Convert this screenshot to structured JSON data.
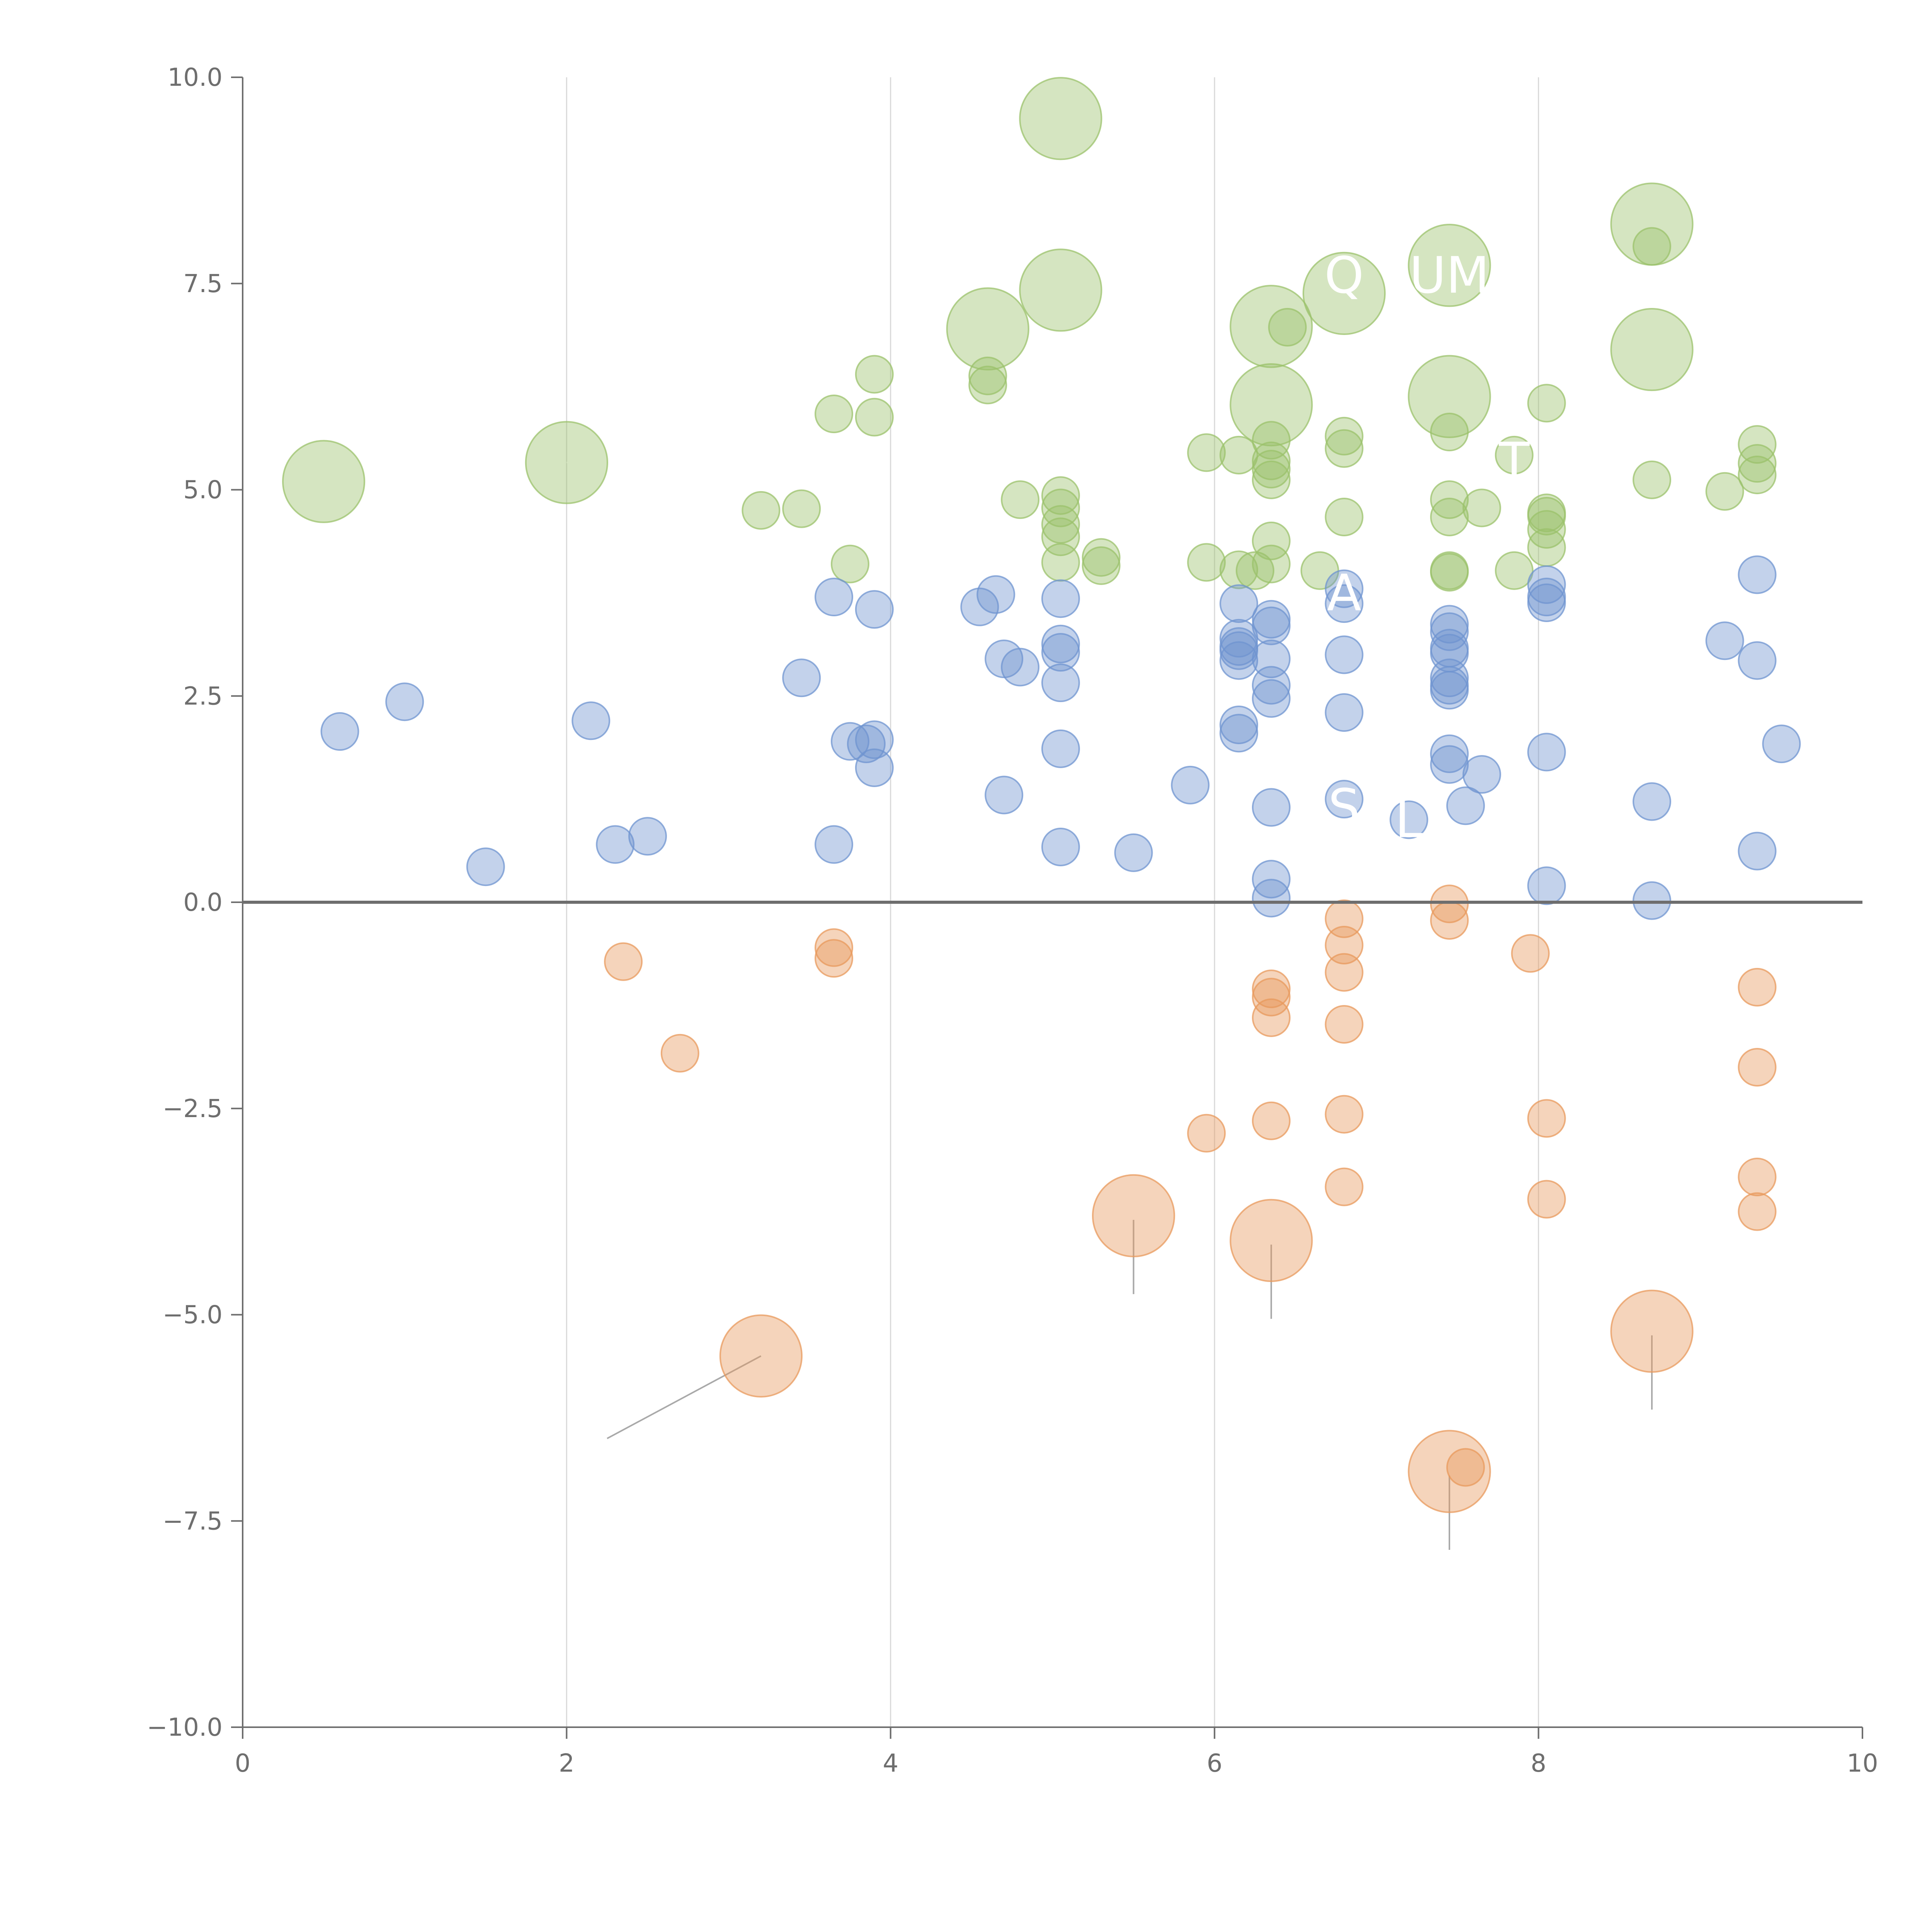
{
  "chart_data": {
    "type": "scatter",
    "title": "",
    "xlabel": "",
    "ylabel": "",
    "xlim": [
      0,
      10
    ],
    "ylim": [
      -10,
      10
    ],
    "x_ticks": [
      0,
      2,
      4,
      6,
      8,
      10
    ],
    "x_tick_labels": [
      "0",
      "2",
      "4",
      "6",
      "8",
      "10"
    ],
    "y_ticks": [
      -10,
      -7.5,
      -5,
      -2.5,
      0,
      2.5,
      5,
      7.5,
      10
    ],
    "y_tick_labels": [
      "−10.0",
      "−7.5",
      "−5.0",
      "−2.5",
      "0.0",
      "2.5",
      "5.0",
      "7.5",
      "10.0"
    ],
    "grid": "vertical",
    "zero_line": true,
    "legend": "none",
    "colors": {
      "green": "#9bc26b",
      "blue": "#6f94d0",
      "orange": "#e8995c",
      "grid": "#d9d9d9",
      "axis": "#6e6e6e"
    },
    "series": [
      {
        "name": "green",
        "color": "#9bc26b",
        "points": [
          {
            "x": 0.5,
            "y": 5.1,
            "r": 2.2
          },
          {
            "x": 2.0,
            "y": 5.33,
            "r": 2.2
          },
          {
            "x": 5.05,
            "y": 9.5,
            "r": 2.2
          },
          {
            "x": 5.05,
            "y": 7.42,
            "r": 2.2
          },
          {
            "x": 4.6,
            "y": 6.95,
            "r": 2.2
          },
          {
            "x": 6.35,
            "y": 6.98,
            "r": 2.2
          },
          {
            "x": 6.35,
            "y": 6.03,
            "r": 2.2
          },
          {
            "x": 6.8,
            "y": 7.38,
            "r": 2.2
          },
          {
            "x": 7.45,
            "y": 7.72,
            "r": 2.2
          },
          {
            "x": 7.45,
            "y": 6.13,
            "r": 2.2
          },
          {
            "x": 8.7,
            "y": 8.22,
            "r": 2.2
          },
          {
            "x": 8.7,
            "y": 6.7,
            "r": 2.2
          },
          {
            "x": 3.2,
            "y": 4.75,
            "r": 1
          },
          {
            "x": 3.45,
            "y": 4.77,
            "r": 1
          },
          {
            "x": 3.65,
            "y": 5.92,
            "r": 1
          },
          {
            "x": 3.9,
            "y": 6.4,
            "r": 1
          },
          {
            "x": 3.9,
            "y": 5.88,
            "r": 1
          },
          {
            "x": 3.75,
            "y": 4.1,
            "r": 1
          },
          {
            "x": 4.6,
            "y": 6.38,
            "r": 1
          },
          {
            "x": 4.6,
            "y": 6.27,
            "r": 1
          },
          {
            "x": 4.8,
            "y": 4.88,
            "r": 1
          },
          {
            "x": 5.05,
            "y": 4.93,
            "r": 1
          },
          {
            "x": 5.05,
            "y": 4.78,
            "r": 1
          },
          {
            "x": 5.05,
            "y": 4.58,
            "r": 1
          },
          {
            "x": 5.05,
            "y": 4.43,
            "r": 1
          },
          {
            "x": 5.05,
            "y": 4.12,
            "r": 1
          },
          {
            "x": 5.3,
            "y": 4.18,
            "r": 1
          },
          {
            "x": 5.3,
            "y": 4.08,
            "r": 1
          },
          {
            "x": 5.95,
            "y": 5.45,
            "r": 1
          },
          {
            "x": 5.95,
            "y": 4.12,
            "r": 1
          },
          {
            "x": 6.15,
            "y": 5.42,
            "r": 1
          },
          {
            "x": 6.15,
            "y": 4.03,
            "r": 1
          },
          {
            "x": 6.25,
            "y": 4.02,
            "r": 1
          },
          {
            "x": 6.35,
            "y": 5.6,
            "r": 1
          },
          {
            "x": 6.35,
            "y": 5.35,
            "r": 1
          },
          {
            "x": 6.35,
            "y": 5.25,
            "r": 1
          },
          {
            "x": 6.35,
            "y": 5.12,
            "r": 1
          },
          {
            "x": 6.35,
            "y": 4.38,
            "r": 1
          },
          {
            "x": 6.35,
            "y": 4.1,
            "r": 1
          },
          {
            "x": 6.45,
            "y": 6.97,
            "r": 1
          },
          {
            "x": 6.65,
            "y": 4.02,
            "r": 1
          },
          {
            "x": 6.8,
            "y": 5.65,
            "r": 1
          },
          {
            "x": 6.8,
            "y": 5.5,
            "r": 1
          },
          {
            "x": 6.8,
            "y": 4.67,
            "r": 1
          },
          {
            "x": 7.45,
            "y": 5.7,
            "r": 1
          },
          {
            "x": 7.45,
            "y": 4.88,
            "r": 1
          },
          {
            "x": 7.45,
            "y": 4.67,
            "r": 1
          },
          {
            "x": 7.45,
            "y": 4.02,
            "r": 1
          },
          {
            "x": 7.45,
            "y": 4.0,
            "r": 1
          },
          {
            "x": 7.65,
            "y": 4.78,
            "r": 1
          },
          {
            "x": 7.85,
            "y": 5.42,
            "r": 1
          },
          {
            "x": 7.85,
            "y": 4.02,
            "r": 1
          },
          {
            "x": 8.05,
            "y": 6.05,
            "r": 1
          },
          {
            "x": 8.05,
            "y": 4.72,
            "r": 1
          },
          {
            "x": 8.05,
            "y": 4.68,
            "r": 1
          },
          {
            "x": 8.05,
            "y": 4.52,
            "r": 1
          },
          {
            "x": 8.05,
            "y": 4.3,
            "r": 1
          },
          {
            "x": 8.7,
            "y": 7.95,
            "r": 1
          },
          {
            "x": 8.7,
            "y": 5.12,
            "r": 1
          },
          {
            "x": 9.15,
            "y": 4.98,
            "r": 1
          },
          {
            "x": 9.35,
            "y": 5.55,
            "r": 1
          },
          {
            "x": 9.35,
            "y": 5.32,
            "r": 1
          },
          {
            "x": 9.35,
            "y": 5.18,
            "r": 1
          }
        ]
      },
      {
        "name": "blue",
        "color": "#6f94d0",
        "points": [
          {
            "x": 0.6,
            "y": 2.07
          },
          {
            "x": 1.0,
            "y": 2.43
          },
          {
            "x": 1.5,
            "y": 0.43
          },
          {
            "x": 2.15,
            "y": 2.2
          },
          {
            "x": 2.3,
            "y": 0.7
          },
          {
            "x": 2.5,
            "y": 0.8
          },
          {
            "x": 3.45,
            "y": 2.72
          },
          {
            "x": 3.65,
            "y": 3.7
          },
          {
            "x": 3.65,
            "y": 0.7
          },
          {
            "x": 3.75,
            "y": 1.95
          },
          {
            "x": 3.85,
            "y": 1.92
          },
          {
            "x": 3.9,
            "y": 3.55
          },
          {
            "x": 3.9,
            "y": 1.97
          },
          {
            "x": 3.9,
            "y": 1.63
          },
          {
            "x": 4.55,
            "y": 3.58
          },
          {
            "x": 4.65,
            "y": 3.73
          },
          {
            "x": 4.7,
            "y": 2.95
          },
          {
            "x": 4.7,
            "y": 1.3
          },
          {
            "x": 4.8,
            "y": 2.85
          },
          {
            "x": 5.05,
            "y": 3.68
          },
          {
            "x": 5.05,
            "y": 3.13
          },
          {
            "x": 5.05,
            "y": 3.03
          },
          {
            "x": 5.05,
            "y": 2.66
          },
          {
            "x": 5.05,
            "y": 1.86
          },
          {
            "x": 5.05,
            "y": 0.67
          },
          {
            "x": 5.5,
            "y": 0.6
          },
          {
            "x": 5.85,
            "y": 1.42
          },
          {
            "x": 6.15,
            "y": 3.62
          },
          {
            "x": 6.15,
            "y": 3.2
          },
          {
            "x": 6.15,
            "y": 3.1
          },
          {
            "x": 6.15,
            "y": 3.05
          },
          {
            "x": 6.15,
            "y": 2.93
          },
          {
            "x": 6.15,
            "y": 2.15
          },
          {
            "x": 6.15,
            "y": 2.05
          },
          {
            "x": 6.35,
            "y": 3.43
          },
          {
            "x": 6.35,
            "y": 3.35
          },
          {
            "x": 6.35,
            "y": 2.95
          },
          {
            "x": 6.35,
            "y": 2.63
          },
          {
            "x": 6.35,
            "y": 2.47
          },
          {
            "x": 6.35,
            "y": 1.15
          },
          {
            "x": 6.35,
            "y": 0.28
          },
          {
            "x": 6.35,
            "y": 0.05
          },
          {
            "x": 6.8,
            "y": 3.8
          },
          {
            "x": 6.8,
            "y": 3.62
          },
          {
            "x": 6.8,
            "y": 3.0
          },
          {
            "x": 6.8,
            "y": 2.3
          },
          {
            "x": 6.8,
            "y": 1.25
          },
          {
            "x": 7.2,
            "y": 1.0
          },
          {
            "x": 7.45,
            "y": 3.37
          },
          {
            "x": 7.45,
            "y": 3.28
          },
          {
            "x": 7.45,
            "y": 3.08
          },
          {
            "x": 7.45,
            "y": 3.02
          },
          {
            "x": 7.45,
            "y": 2.72
          },
          {
            "x": 7.45,
            "y": 2.63
          },
          {
            "x": 7.45,
            "y": 2.57
          },
          {
            "x": 7.45,
            "y": 1.8
          },
          {
            "x": 7.45,
            "y": 1.67
          },
          {
            "x": 7.65,
            "y": 1.55
          },
          {
            "x": 7.55,
            "y": 1.17
          },
          {
            "x": 8.05,
            "y": 3.85
          },
          {
            "x": 8.05,
            "y": 3.7
          },
          {
            "x": 8.05,
            "y": 3.63
          },
          {
            "x": 8.05,
            "y": 1.82
          },
          {
            "x": 8.05,
            "y": 0.2
          },
          {
            "x": 8.7,
            "y": 1.22
          },
          {
            "x": 8.7,
            "y": 0.02
          },
          {
            "x": 9.15,
            "y": 3.17
          },
          {
            "x": 9.35,
            "y": 3.97
          },
          {
            "x": 9.35,
            "y": 2.93
          },
          {
            "x": 9.35,
            "y": 0.62
          },
          {
            "x": 9.5,
            "y": 1.92
          }
        ]
      },
      {
        "name": "orange",
        "color": "#e8995c",
        "points": [
          {
            "x": 3.2,
            "y": -5.5,
            "r": 2.2
          },
          {
            "x": 5.5,
            "y": -3.8,
            "r": 2.2
          },
          {
            "x": 6.35,
            "y": -4.1,
            "r": 2.2
          },
          {
            "x": 7.45,
            "y": -6.9,
            "r": 2.2
          },
          {
            "x": 8.7,
            "y": -5.2,
            "r": 2.2
          },
          {
            "x": 2.35,
            "y": -0.72,
            "r": 1
          },
          {
            "x": 2.7,
            "y": -1.83,
            "r": 1
          },
          {
            "x": 3.65,
            "y": -0.55,
            "r": 1
          },
          {
            "x": 3.65,
            "y": -0.68,
            "r": 1
          },
          {
            "x": 5.95,
            "y": -2.8,
            "r": 1
          },
          {
            "x": 6.35,
            "y": -1.05,
            "r": 1
          },
          {
            "x": 6.35,
            "y": -1.15,
            "r": 1
          },
          {
            "x": 6.35,
            "y": -1.4,
            "r": 1
          },
          {
            "x": 6.35,
            "y": -2.65,
            "r": 1
          },
          {
            "x": 6.8,
            "y": -0.2,
            "r": 1
          },
          {
            "x": 6.8,
            "y": -0.52,
            "r": 1
          },
          {
            "x": 6.8,
            "y": -0.85,
            "r": 1
          },
          {
            "x": 6.8,
            "y": -1.48,
            "r": 1
          },
          {
            "x": 6.8,
            "y": -2.57,
            "r": 1
          },
          {
            "x": 6.8,
            "y": -3.45,
            "r": 1
          },
          {
            "x": 7.45,
            "y": -0.02,
            "r": 1
          },
          {
            "x": 7.45,
            "y": -0.22,
            "r": 1
          },
          {
            "x": 7.55,
            "y": -6.85,
            "r": 1
          },
          {
            "x": 7.95,
            "y": -0.62,
            "r": 1
          },
          {
            "x": 8.05,
            "y": -2.62,
            "r": 1
          },
          {
            "x": 8.05,
            "y": -3.6,
            "r": 1
          },
          {
            "x": 9.35,
            "y": -1.03,
            "r": 1
          },
          {
            "x": 9.35,
            "y": -2.0,
            "r": 1
          },
          {
            "x": 9.35,
            "y": -3.33,
            "r": 1
          },
          {
            "x": 9.35,
            "y": -3.75,
            "r": 1
          }
        ]
      }
    ],
    "annotations": [
      {
        "text": "Q",
        "x": 6.8,
        "y": 7.6
      },
      {
        "text": "UM",
        "x": 7.45,
        "y": 7.6
      },
      {
        "text": "T",
        "x": 7.85,
        "y": 5.35
      },
      {
        "text": "A",
        "x": 6.8,
        "y": 3.75
      },
      {
        "text": "S",
        "x": 6.8,
        "y": 1.15
      },
      {
        "text": "L",
        "x": 7.2,
        "y": 1.0
      }
    ],
    "leader_lines": [
      {
        "x1": 0.5,
        "y1": 5.1,
        "x2": 0.65,
        "y2": 5.35
      },
      {
        "x1": 2.0,
        "y1": 5.33,
        "x2": 2.2,
        "y2": 5.38
      },
      {
        "x1": 5.05,
        "y1": 9.5,
        "x2": 5.3,
        "y2": 9.55
      },
      {
        "x1": 5.05,
        "y1": 7.42,
        "x2": 5.3,
        "y2": 7.47
      },
      {
        "x1": 4.6,
        "y1": 6.95,
        "x2": 4.55,
        "y2": 7.4
      },
      {
        "x1": 6.35,
        "y1": 6.98,
        "x2": 6.6,
        "y2": 6.05
      },
      {
        "x1": 6.35,
        "y1": 6.03,
        "x2": 6.45,
        "y2": 5.6
      },
      {
        "x1": 7.45,
        "y1": 6.13,
        "x2": 7.65,
        "y2": 5.85
      },
      {
        "x1": 8.7,
        "y1": 8.22,
        "x2": 8.95,
        "y2": 8.5
      },
      {
        "x1": 8.7,
        "y1": 6.7,
        "x2": 8.9,
        "y2": 6.45
      },
      {
        "x1": 6.8,
        "y1": 4.75,
        "x2": 6.75,
        "y2": 5.0
      },
      {
        "x1": 6.8,
        "y1": 3.2,
        "x2": 6.85,
        "y2": 2.1
      },
      {
        "x1": 3.2,
        "y1": -5.5,
        "x2": 2.25,
        "y2": -6.5
      },
      {
        "x1": 5.5,
        "y1": -3.85,
        "x2": 5.5,
        "y2": -4.75
      },
      {
        "x1": 6.35,
        "y1": -4.15,
        "x2": 6.35,
        "y2": -5.05
      },
      {
        "x1": 7.45,
        "y1": -6.95,
        "x2": 7.45,
        "y2": -7.85
      },
      {
        "x1": 8.7,
        "y1": -5.25,
        "x2": 8.7,
        "y2": -6.15
      }
    ]
  }
}
